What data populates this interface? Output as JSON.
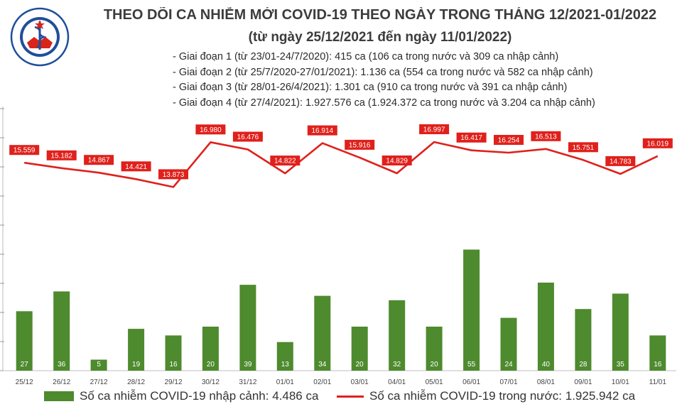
{
  "header": {
    "title": "THEO DÕI CA NHIỄM MỚI COVID-19 THEO NGÀY TRONG THÁNG 12/2021-01/2022",
    "subtitle": "(từ ngày 25/12/2021 đến ngày 11/01/2022)",
    "notes": [
      "- Giai đoạn 1 (từ 23/01-24/7/2020): 415 ca (106 ca trong nước và 309 ca nhập cảnh)",
      "- Giai đoạn 2 (từ 25/7/2020-27/01/2021): 1.136 ca (554 ca trong nước và 582 ca nhập cảnh)",
      "- Giai đoạn 3 (từ 28/01-26/4/2021): 1.301 ca (910 ca trong nước và 391 ca nhập cảnh)",
      "- Giai đoạn 4 (từ 27/4/2021): 1.927.576 ca (1.924.372 ca trong nước và 3.204 ca nhập cảnh)"
    ],
    "logo_text": "BỘ Y TẾ",
    "logo_text_bottom": "MINISTRY OF HEALTH"
  },
  "colors": {
    "bar": "#4e8a2e",
    "line": "#e0201b",
    "logo_blue": "#1f4e9a"
  },
  "chart_data": {
    "type": "bar",
    "categories": [
      "25/12",
      "26/12",
      "27/12",
      "28/12",
      "29/12",
      "30/12",
      "31/12",
      "01/01",
      "02/01",
      "03/01",
      "04/01",
      "05/01",
      "06/01",
      "07/01",
      "08/01",
      "09/01",
      "10/01",
      "11/01"
    ],
    "series": [
      {
        "name": "Số ca nhiễm COVID-19 nhập cảnh: 4.486 ca",
        "type": "bar",
        "values": [
          27,
          36,
          5,
          19,
          16,
          20,
          39,
          13,
          34,
          20,
          32,
          20,
          55,
          24,
          40,
          28,
          35,
          16
        ],
        "labels": [
          "27",
          "36",
          "5",
          "19",
          "16",
          "20",
          "39",
          "13",
          "34",
          "20",
          "32",
          "20",
          "55",
          "24",
          "40",
          "28",
          "35",
          "16"
        ]
      },
      {
        "name": "Số ca nhiễm COVID-19 trong nước: 1.925.942 ca",
        "type": "line",
        "values": [
          15559,
          15182,
          14867,
          14421,
          13873,
          16980,
          16476,
          14822,
          16914,
          15916,
          14829,
          16997,
          16417,
          16254,
          16513,
          15751,
          14783,
          16019
        ],
        "labels": [
          "15.559",
          "15.182",
          "14.867",
          "14.421",
          "13.873",
          "16.980",
          "16.476",
          "14.822",
          "16.914",
          "15.916",
          "14.829",
          "16.997",
          "16.417",
          "16.254",
          "16.513",
          "15.751",
          "14.783",
          "16.019"
        ]
      }
    ],
    "grid": false,
    "legend_position": "bottom"
  },
  "legend": {
    "bar_label": "Số ca nhiễm COVID-19 nhập cảnh: 4.486 ca",
    "line_label": "Số ca nhiễm COVID-19 trong nước: 1.925.942 ca"
  }
}
